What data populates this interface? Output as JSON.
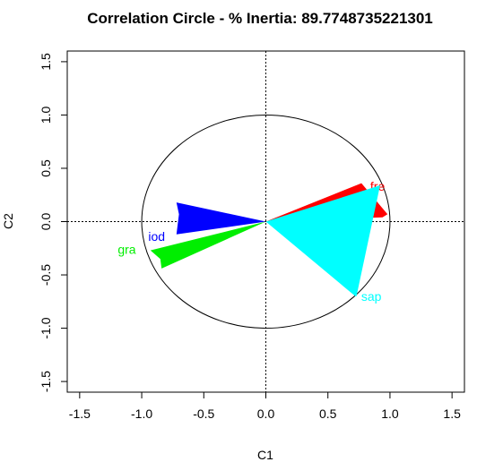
{
  "chart_data": {
    "type": "scatter",
    "title": "Correlation Circle - % Inertia: 89.7748735221301",
    "xlabel": "C1",
    "ylabel": "C2",
    "xlim": [
      -1.6,
      1.6
    ],
    "ylim": [
      -1.6,
      1.6
    ],
    "xticks": [
      "-1.5",
      "-1.0",
      "-0.5",
      "0.0",
      "0.5",
      "1.0",
      "1.5"
    ],
    "yticks": [
      "-1.5",
      "-1.0",
      "-0.5",
      "0.0",
      "0.5",
      "1.0",
      "1.5"
    ],
    "circle_radius": 1,
    "reference_lines": "dotted at x=0 and y=0",
    "grid": false,
    "series": [
      {
        "name": "fre",
        "color": "#ff0000",
        "tip": [
          0.98,
          0.07
        ],
        "wing_a": [
          0.77,
          0.36
        ],
        "wing_b": [
          0.94,
          0.04
        ],
        "label_pos": [
          0.9,
          0.33
        ]
      },
      {
        "name": "iod",
        "color": "#0000ff",
        "tip": [
          -0.7,
          0.07
        ],
        "wing_a": [
          -0.72,
          0.18
        ],
        "wing_b": [
          -0.72,
          -0.12
        ],
        "label_pos": [
          -0.88,
          -0.14
        ]
      },
      {
        "name": "gra",
        "color": "#00ee00",
        "tip": [
          -0.85,
          -0.35
        ],
        "wing_a": [
          -0.93,
          -0.27
        ],
        "wing_b": [
          -0.84,
          -0.44
        ],
        "label_pos": [
          -1.12,
          -0.26
        ]
      },
      {
        "name": "sap",
        "color": "#00ffff",
        "tip": [
          0.73,
          -0.7
        ],
        "wing_a": [
          0.92,
          0.34
        ],
        "wing_b": [
          0.72,
          -0.7
        ],
        "label_pos": [
          0.85,
          -0.7
        ]
      }
    ]
  }
}
